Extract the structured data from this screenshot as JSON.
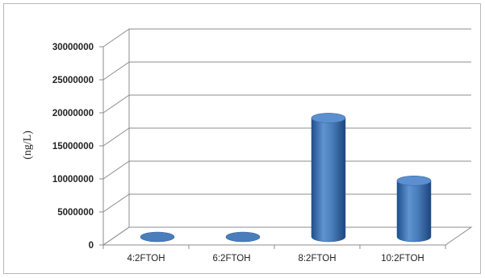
{
  "chart_data": {
    "type": "bar",
    "style": "3d-cylinder",
    "categories": [
      "4:2FTOH",
      "6:2FTOH",
      "8:2FTOH",
      "10:2FTOH"
    ],
    "values": [
      0,
      0,
      18000000,
      8500000
    ],
    "ylabel": "(ng/L)",
    "ylim": [
      0,
      30000000
    ],
    "yticks": [
      "0",
      "5000000",
      "10000000",
      "15000000",
      "20000000",
      "25000000",
      "30000000"
    ],
    "grid": true,
    "legend": "none",
    "colors": {
      "bar": "#4a7ebb",
      "grid": "#8c8c8c"
    }
  }
}
